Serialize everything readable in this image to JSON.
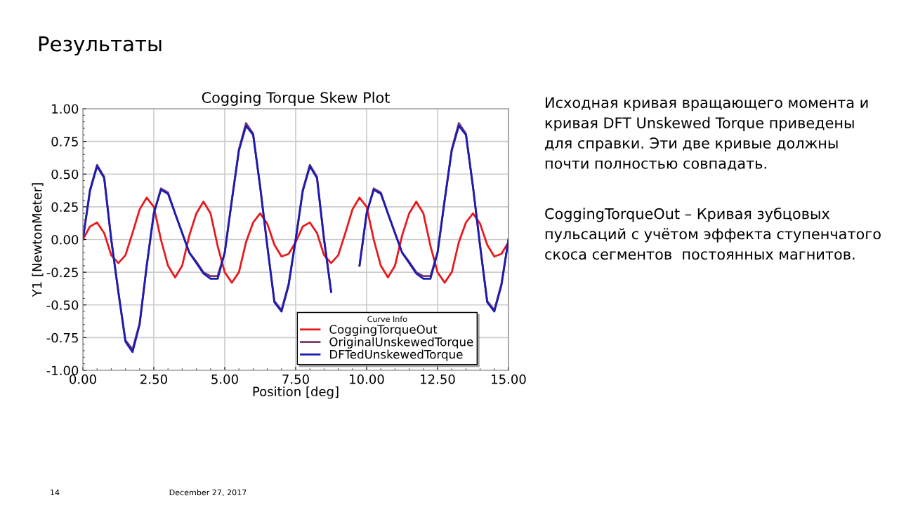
{
  "chart_data": {
    "type": "line",
    "title": "Cogging Torque Skew Plot",
    "xlabel": "Position [deg]",
    "ylabel": "Y1 [NewtonMeter]",
    "legend_title": "Curve Info",
    "legend": "bottom right",
    "grid": true,
    "marker": "none",
    "line_style": "solid",
    "xlim": [
      0,
      15
    ],
    "xticks": [
      {
        "value": 0,
        "label": "0.00"
      },
      {
        "value": 2.5,
        "label": "2.50"
      },
      {
        "value": 5,
        "label": "5.00"
      },
      {
        "value": 7.5,
        "label": "7.50"
      },
      {
        "value": 10,
        "label": "10.00"
      },
      {
        "value": 12.5,
        "label": "12.50"
      },
      {
        "value": 15,
        "label": "15.00"
      }
    ],
    "ylim": [
      -1,
      1
    ],
    "yticks": [
      {
        "value": -1,
        "label": "-1.00"
      },
      {
        "value": -0.75,
        "label": "-0.75"
      },
      {
        "value": -0.5,
        "label": "-0.50"
      },
      {
        "value": -0.25,
        "label": "-0.25"
      },
      {
        "value": 0,
        "label": "0.00"
      },
      {
        "value": 0.25,
        "label": "0.25"
      },
      {
        "value": 0.5,
        "label": "0.50"
      },
      {
        "value": 0.75,
        "label": "0.75"
      },
      {
        "value": 1,
        "label": "1.00"
      }
    ],
    "x": [
      0,
      0.25,
      0.5,
      0.75,
      1,
      1.25,
      1.5,
      1.75,
      2,
      2.25,
      2.5,
      2.75,
      3,
      3.25,
      3.5,
      3.75,
      4,
      4.25,
      4.5,
      4.75,
      5,
      5.25,
      5.5,
      5.75,
      6,
      6.25,
      6.5,
      6.75,
      7,
      7.25,
      7.5,
      7.75,
      8,
      8.25,
      8.5,
      8.75,
      9,
      9.25,
      9.5,
      9.75,
      10,
      10.25,
      10.5,
      10.75,
      11,
      11.25,
      11.5,
      11.75,
      12,
      12.25,
      12.5,
      12.75,
      13,
      13.25,
      13.5,
      13.75,
      14,
      14.25,
      14.5,
      14.75,
      15
    ],
    "series": [
      {
        "name": "CoggingTorqueOut",
        "color": "#e8191c",
        "values": [
          0,
          0.1,
          0.13,
          0.05,
          -0.12,
          -0.18,
          -0.12,
          0.05,
          0.23,
          0.32,
          0.25,
          0.0,
          -0.2,
          -0.29,
          -0.2,
          0.03,
          0.2,
          0.29,
          0.2,
          -0.05,
          -0.25,
          -0.33,
          -0.25,
          -0.02,
          0.13,
          0.2,
          0.12,
          -0.04,
          -0.13,
          -0.11,
          -0.02,
          0.1,
          0.13,
          0.05,
          -0.12,
          -0.18,
          -0.12,
          0.05,
          0.23,
          0.32,
          0.25,
          0.0,
          -0.2,
          -0.29,
          -0.2,
          0.03,
          0.2,
          0.29,
          0.2,
          -0.05,
          -0.25,
          -0.33,
          -0.25,
          -0.02,
          0.13,
          0.2,
          0.12,
          -0.04,
          -0.13,
          -0.11,
          -0.02
        ]
      },
      {
        "name": "OriginalUnskewedTorque",
        "color": "#7a3b6b",
        "values": [
          0,
          0.38,
          0.57,
          0.48,
          0.0,
          -0.4,
          -0.77,
          -0.84,
          -0.64,
          -0.2,
          0.2,
          0.39,
          0.36,
          0.2,
          0.05,
          -0.1,
          -0.17,
          -0.25,
          -0.28,
          -0.28,
          -0.1,
          0.3,
          0.69,
          0.89,
          0.81,
          0.4,
          -0.05,
          -0.47,
          -0.54,
          -0.34,
          0.0,
          0.38,
          0.57,
          0.48,
          0.0,
          -0.4,
          null,
          null,
          null,
          -0.2,
          0.2,
          0.39,
          0.36,
          0.2,
          0.05,
          -0.1,
          -0.17,
          -0.25,
          -0.28,
          -0.28,
          -0.1,
          0.3,
          0.69,
          0.89,
          0.81,
          0.4,
          -0.05,
          -0.47,
          -0.54,
          -0.34,
          0.0
        ]
      },
      {
        "name": "DFTedUnskewedTorque",
        "color": "#1c1cb4",
        "values": [
          0,
          0.37,
          0.56,
          0.47,
          0.0,
          -0.4,
          -0.78,
          -0.86,
          -0.65,
          -0.2,
          0.2,
          0.38,
          0.35,
          0.2,
          0.05,
          -0.1,
          -0.18,
          -0.26,
          -0.3,
          -0.3,
          -0.1,
          0.3,
          0.68,
          0.87,
          0.8,
          0.4,
          -0.05,
          -0.48,
          -0.55,
          -0.35,
          0.0,
          0.37,
          0.56,
          0.47,
          0.0,
          -0.4,
          null,
          null,
          null,
          -0.2,
          0.2,
          0.38,
          0.35,
          0.2,
          0.05,
          -0.1,
          -0.18,
          -0.26,
          -0.3,
          -0.3,
          -0.1,
          0.3,
          0.68,
          0.87,
          0.8,
          0.4,
          -0.05,
          -0.48,
          -0.55,
          -0.35,
          0.0
        ]
      }
    ],
    "annotations": [
      "Результаты",
      "Исходная кривая вращающего момента и\nкривая DFT Unskewed Torque приведены\nдля справки. Эти две кривые должны\nпочти полностью совпадать.",
      "CoggingTorqueOut – Кривая зубцовых\nпульсаций с учётом эффекта ступенчатого\nскоса сегментов  постоянных магнитов.",
      "14",
      "December 27, 2017"
    ]
  }
}
